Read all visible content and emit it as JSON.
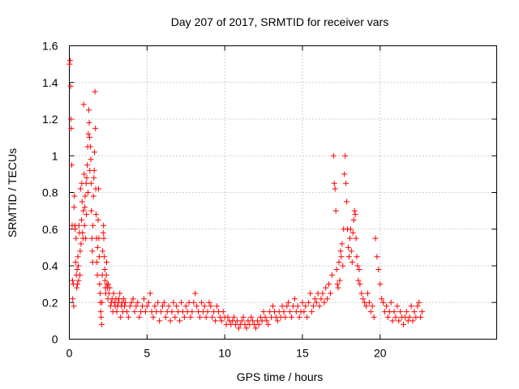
{
  "chart_data": {
    "type": "scatter",
    "title": "Day 207 of 2017, SRMTID for receiver vars",
    "xlabel": "GPS time / hours",
    "ylabel": "SRMTID / TECUs",
    "xlim": [
      0,
      27.5
    ],
    "ylim": [
      0,
      1.6
    ],
    "xticks": [
      0,
      5,
      10,
      15,
      20
    ],
    "yticks": [
      0,
      0.2,
      0.4,
      0.6,
      0.8,
      1,
      1.2,
      1.4,
      1.6
    ],
    "ytick_labels": [
      "0",
      "0.2",
      "0.4",
      "0.6",
      "0.8",
      "1",
      "1.2",
      "1.4",
      "1.6"
    ],
    "grid": true,
    "marker": "+",
    "color": "#ff0000",
    "series": [
      {
        "name": "SRMTID",
        "x": [
          0.02,
          0.05,
          0.08,
          0.1,
          0.12,
          0.15,
          0.18,
          0.2,
          0.22,
          0.25,
          0.28,
          0.3,
          0.33,
          0.35,
          0.38,
          0.4,
          0.43,
          0.45,
          0.48,
          0.5,
          0.52,
          0.55,
          0.58,
          0.6,
          0.62,
          0.65,
          0.68,
          0.7,
          0.72,
          0.75,
          0.78,
          0.8,
          0.82,
          0.85,
          0.88,
          0.9,
          0.92,
          0.95,
          0.98,
          1.0,
          1.02,
          1.05,
          1.08,
          1.1,
          1.12,
          1.15,
          1.18,
          1.2,
          1.22,
          1.25,
          1.28,
          1.3,
          1.32,
          1.35,
          1.38,
          1.4,
          1.42,
          1.45,
          1.48,
          1.5,
          1.52,
          1.55,
          1.58,
          1.6,
          1.62,
          1.65,
          1.68,
          1.7,
          1.72,
          1.75,
          1.78,
          1.8,
          1.82,
          1.85,
          1.88,
          1.9,
          1.92,
          1.95,
          1.98,
          2.0,
          2.02,
          2.05,
          2.08,
          2.1,
          2.12,
          2.15,
          2.18,
          2.2,
          2.22,
          2.25,
          2.28,
          2.3,
          2.32,
          2.35,
          2.38,
          2.4,
          2.42,
          2.45,
          2.48,
          2.5,
          2.55,
          2.6,
          2.65,
          2.7,
          2.75,
          2.8,
          2.85,
          2.9,
          2.95,
          3.0,
          3.05,
          3.1,
          3.15,
          3.2,
          3.25,
          3.3,
          3.35,
          3.4,
          3.45,
          3.5,
          3.55,
          3.6,
          3.7,
          3.8,
          3.9,
          4.0,
          4.1,
          4.2,
          4.3,
          4.4,
          4.5,
          4.6,
          4.7,
          4.8,
          4.9,
          5.0,
          5.1,
          5.2,
          5.3,
          5.4,
          5.5,
          5.6,
          5.7,
          5.8,
          5.9,
          6.0,
          6.1,
          6.2,
          6.3,
          6.4,
          6.5,
          6.6,
          6.7,
          6.8,
          6.9,
          7.0,
          7.1,
          7.2,
          7.3,
          7.4,
          7.5,
          7.6,
          7.7,
          7.8,
          7.9,
          8.0,
          8.1,
          8.2,
          8.3,
          8.4,
          8.5,
          8.6,
          8.7,
          8.8,
          8.9,
          9.0,
          9.1,
          9.2,
          9.3,
          9.4,
          9.5,
          9.6,
          9.7,
          9.8,
          9.9,
          10.0,
          10.1,
          10.2,
          10.3,
          10.4,
          10.5,
          10.6,
          10.7,
          10.8,
          10.9,
          11.0,
          11.1,
          11.2,
          11.3,
          11.4,
          11.5,
          11.6,
          11.7,
          11.8,
          11.9,
          12.0,
          12.1,
          12.2,
          12.3,
          12.4,
          12.5,
          12.6,
          12.7,
          12.8,
          12.9,
          13.0,
          13.1,
          13.2,
          13.3,
          13.4,
          13.5,
          13.6,
          13.7,
          13.8,
          13.9,
          14.0,
          14.1,
          14.2,
          14.3,
          14.4,
          14.5,
          14.6,
          14.7,
          14.8,
          14.9,
          15.0,
          15.1,
          15.2,
          15.3,
          15.4,
          15.5,
          15.6,
          15.7,
          15.8,
          15.9,
          16.0,
          16.1,
          16.2,
          16.3,
          16.4,
          16.5,
          16.6,
          16.7,
          16.8,
          16.9,
          17.0,
          17.05,
          17.1,
          17.15,
          17.2,
          17.25,
          17.3,
          17.35,
          17.4,
          17.45,
          17.5,
          17.55,
          17.6,
          17.65,
          17.7,
          17.75,
          17.8,
          17.85,
          17.9,
          17.95,
          18.0,
          18.05,
          18.1,
          18.15,
          18.2,
          18.25,
          18.3,
          18.35,
          18.4,
          18.45,
          18.5,
          18.55,
          18.6,
          18.65,
          18.7,
          18.8,
          18.9,
          19.0,
          19.1,
          19.2,
          19.3,
          19.4,
          19.5,
          19.6,
          19.7,
          19.8,
          19.9,
          20.0,
          20.1,
          20.2,
          20.3,
          20.4,
          20.5,
          20.6,
          20.7,
          20.8,
          20.9,
          21.0,
          21.1,
          21.2,
          21.3,
          21.4,
          21.5,
          21.6,
          21.7,
          21.8,
          21.9,
          22.0,
          22.1,
          22.2,
          22.3,
          22.4,
          22.5,
          22.6,
          22.7
        ],
        "y": [
          1.5,
          1.52,
          1.38,
          1.2,
          1.15,
          0.95,
          0.62,
          0.32,
          0.22,
          0.3,
          0.18,
          0.72,
          0.78,
          0.62,
          0.6,
          0.42,
          0.55,
          0.35,
          0.28,
          0.38,
          0.3,
          0.45,
          0.4,
          0.32,
          0.62,
          0.58,
          0.35,
          0.48,
          0.82,
          0.52,
          0.65,
          0.85,
          0.75,
          0.58,
          0.55,
          0.7,
          1.28,
          0.9,
          0.62,
          0.72,
          0.78,
          0.55,
          0.85,
          0.68,
          0.88,
          0.95,
          1.05,
          0.8,
          1.12,
          1.25,
          1.18,
          1.1,
          0.92,
          1.05,
          0.98,
          0.85,
          0.7,
          0.55,
          0.48,
          0.42,
          0.62,
          0.78,
          0.88,
          0.92,
          1.02,
          1.35,
          1.15,
          0.82,
          0.68,
          0.55,
          0.42,
          0.35,
          0.5,
          0.65,
          0.82,
          0.55,
          0.45,
          0.3,
          0.25,
          0.2,
          0.15,
          0.12,
          0.08,
          0.2,
          0.35,
          0.48,
          0.58,
          0.62,
          0.55,
          0.45,
          0.38,
          0.32,
          0.28,
          0.25,
          0.35,
          0.42,
          0.3,
          0.28,
          0.22,
          0.3,
          0.25,
          0.28,
          0.18,
          0.2,
          0.22,
          0.15,
          0.25,
          0.2,
          0.18,
          0.22,
          0.15,
          0.18,
          0.2,
          0.22,
          0.25,
          0.12,
          0.18,
          0.2,
          0.15,
          0.22,
          0.18,
          0.2,
          0.15,
          0.12,
          0.18,
          0.2,
          0.22,
          0.15,
          0.18,
          0.2,
          0.12,
          0.15,
          0.18,
          0.22,
          0.15,
          0.18,
          0.2,
          0.25,
          0.15,
          0.12,
          0.18,
          0.15,
          0.2,
          0.1,
          0.15,
          0.18,
          0.2,
          0.12,
          0.15,
          0.18,
          0.1,
          0.15,
          0.2,
          0.12,
          0.18,
          0.15,
          0.1,
          0.2,
          0.15,
          0.12,
          0.18,
          0.15,
          0.2,
          0.12,
          0.15,
          0.2,
          0.25,
          0.18,
          0.15,
          0.12,
          0.2,
          0.15,
          0.18,
          0.12,
          0.15,
          0.2,
          0.18,
          0.12,
          0.15,
          0.1,
          0.18,
          0.15,
          0.12,
          0.1,
          0.15,
          0.12,
          0.08,
          0.12,
          0.1,
          0.08,
          0.1,
          0.12,
          0.08,
          0.1,
          0.06,
          0.08,
          0.1,
          0.12,
          0.08,
          0.06,
          0.1,
          0.08,
          0.12,
          0.1,
          0.08,
          0.06,
          0.1,
          0.08,
          0.12,
          0.1,
          0.15,
          0.12,
          0.1,
          0.08,
          0.15,
          0.12,
          0.18,
          0.15,
          0.12,
          0.1,
          0.15,
          0.12,
          0.18,
          0.15,
          0.12,
          0.18,
          0.2,
          0.15,
          0.12,
          0.18,
          0.22,
          0.15,
          0.18,
          0.12,
          0.15,
          0.2,
          0.15,
          0.18,
          0.12,
          0.2,
          0.25,
          0.15,
          0.18,
          0.22,
          0.2,
          0.25,
          0.18,
          0.22,
          0.25,
          0.2,
          0.28,
          0.22,
          0.3,
          0.25,
          0.35,
          1.0,
          0.85,
          0.82,
          0.7,
          0.38,
          0.3,
          0.28,
          0.42,
          0.32,
          0.48,
          0.45,
          0.52,
          0.4,
          0.6,
          0.9,
          1.0,
          0.85,
          0.75,
          0.6,
          0.5,
          0.45,
          0.55,
          0.6,
          0.48,
          0.42,
          0.58,
          0.65,
          0.7,
          0.68,
          0.55,
          0.45,
          0.4,
          0.32,
          0.38,
          0.3,
          0.25,
          0.22,
          0.2,
          0.18,
          0.25,
          0.2,
          0.15,
          0.18,
          0.12,
          0.55,
          0.45,
          0.38,
          0.3,
          0.22,
          0.2,
          0.15,
          0.18,
          0.12,
          0.15,
          0.2,
          0.1,
          0.15,
          0.12,
          0.18,
          0.1,
          0.15,
          0.12,
          0.08,
          0.12,
          0.15,
          0.1,
          0.12,
          0.18,
          0.1,
          0.15,
          0.12,
          0.18,
          0.2,
          0.12,
          0.15
        ]
      }
    ]
  }
}
